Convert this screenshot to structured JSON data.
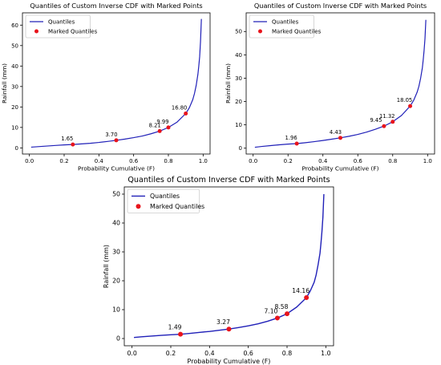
{
  "chart_data": [
    {
      "type": "line",
      "title": "Quantiles of Custom Inverse CDF with Marked Points",
      "xlabel": "Probability Cumulative (F)",
      "ylabel": "Rainfall (mm)",
      "xlim": [
        -0.04,
        1.04
      ],
      "ylim": [
        -3,
        66
      ],
      "xticks": [
        0.0,
        0.2,
        0.4,
        0.6,
        0.8,
        1.0
      ],
      "xtick_labels": [
        "0.0",
        "0.2",
        "0.4",
        "0.6",
        "0.8",
        "1.0"
      ],
      "yticks": [
        0,
        10,
        20,
        30,
        40,
        50,
        60
      ],
      "ytick_labels": [
        "0",
        "10",
        "20",
        "30",
        "40",
        "50",
        "60"
      ],
      "legend_position": "top-left",
      "series": [
        {
          "name": "Quantiles",
          "kind": "line",
          "color": "#2020b8",
          "x": [
            0.01,
            0.05,
            0.1,
            0.15,
            0.2,
            0.25,
            0.3,
            0.35,
            0.4,
            0.45,
            0.5,
            0.55,
            0.6,
            0.65,
            0.7,
            0.75,
            0.8,
            0.85,
            0.9,
            0.92,
            0.94,
            0.95,
            0.96,
            0.97,
            0.975,
            0.98,
            0.985,
            0.99
          ],
          "y": [
            0.35,
            0.6,
            0.9,
            1.2,
            1.45,
            1.65,
            1.95,
            2.25,
            2.65,
            3.15,
            3.7,
            4.3,
            5.0,
            5.8,
            6.9,
            8.21,
            9.99,
            12.6,
            16.8,
            19.5,
            23.5,
            26.5,
            30.5,
            36.0,
            40.0,
            44.5,
            52.0,
            63.0
          ]
        },
        {
          "name": "Marked Quantiles",
          "kind": "scatter",
          "color": "#e8141c",
          "x": [
            0.25,
            0.5,
            0.75,
            0.8,
            0.9
          ],
          "y": [
            1.65,
            3.7,
            8.21,
            9.99,
            16.8
          ],
          "labels": [
            "1.65",
            "3.70",
            "8.21",
            "9.99",
            "16.80"
          ]
        }
      ]
    },
    {
      "type": "line",
      "title": "Quantiles of Custom Inverse CDF with Marked Points",
      "xlabel": "Probability Cumulative (F)",
      "ylabel": "Rainfall (mm)",
      "xlim": [
        -0.04,
        1.04
      ],
      "ylim": [
        -2.5,
        58
      ],
      "xticks": [
        0.0,
        0.2,
        0.4,
        0.6,
        0.8,
        1.0
      ],
      "xtick_labels": [
        "0.0",
        "0.2",
        "0.4",
        "0.6",
        "0.8",
        "1.0"
      ],
      "yticks": [
        0,
        10,
        20,
        30,
        40,
        50
      ],
      "ytick_labels": [
        "0",
        "10",
        "20",
        "30",
        "40",
        "50"
      ],
      "legend_position": "top-left",
      "series": [
        {
          "name": "Quantiles",
          "kind": "line",
          "color": "#2020b8",
          "x": [
            0.01,
            0.05,
            0.1,
            0.15,
            0.2,
            0.25,
            0.3,
            0.35,
            0.4,
            0.45,
            0.5,
            0.55,
            0.6,
            0.65,
            0.7,
            0.75,
            0.8,
            0.85,
            0.9,
            0.92,
            0.94,
            0.95,
            0.96,
            0.97,
            0.975,
            0.98,
            0.985,
            0.99
          ],
          "y": [
            0.4,
            0.75,
            1.1,
            1.45,
            1.75,
            1.96,
            2.35,
            2.8,
            3.3,
            3.85,
            4.43,
            5.1,
            5.9,
            6.9,
            8.1,
            9.45,
            11.32,
            14.0,
            18.05,
            20.5,
            24.0,
            26.5,
            30.0,
            34.5,
            38.0,
            42.0,
            47.0,
            55.0
          ]
        },
        {
          "name": "Marked Quantiles",
          "kind": "scatter",
          "color": "#e8141c",
          "x": [
            0.25,
            0.5,
            0.75,
            0.8,
            0.9
          ],
          "y": [
            1.96,
            4.43,
            9.45,
            11.32,
            18.05
          ],
          "labels": [
            "1.96",
            "4.43",
            "9.45",
            "11.32",
            "18.05"
          ]
        }
      ]
    },
    {
      "type": "line",
      "title": "Quantiles of Custom Inverse CDF with Marked Points",
      "xlabel": "Probability Cumulative (F)",
      "ylabel": "Rainfall (mm)",
      "xlim": [
        -0.04,
        1.04
      ],
      "ylim": [
        -2.5,
        52.5
      ],
      "xticks": [
        0.0,
        0.2,
        0.4,
        0.6,
        0.8,
        1.0
      ],
      "xtick_labels": [
        "0.0",
        "0.2",
        "0.4",
        "0.6",
        "0.8",
        "1.0"
      ],
      "yticks": [
        0,
        10,
        20,
        30,
        40,
        50
      ],
      "ytick_labels": [
        "0",
        "10",
        "20",
        "30",
        "40",
        "50"
      ],
      "legend_position": "top-left",
      "series": [
        {
          "name": "Quantiles",
          "kind": "line",
          "color": "#2020b8",
          "x": [
            0.01,
            0.05,
            0.1,
            0.15,
            0.2,
            0.25,
            0.3,
            0.35,
            0.4,
            0.45,
            0.5,
            0.55,
            0.6,
            0.65,
            0.7,
            0.75,
            0.8,
            0.85,
            0.9,
            0.92,
            0.94,
            0.95,
            0.96,
            0.97,
            0.975,
            0.98,
            0.985,
            0.99
          ],
          "y": [
            0.35,
            0.6,
            0.85,
            1.1,
            1.3,
            1.49,
            1.8,
            2.15,
            2.45,
            2.85,
            3.27,
            3.8,
            4.4,
            5.1,
            6.0,
            7.1,
            8.58,
            10.9,
            14.16,
            16.5,
            19.5,
            22.0,
            25.5,
            29.5,
            33.0,
            37.0,
            42.0,
            50.0
          ]
        },
        {
          "name": "Marked Quantiles",
          "kind": "scatter",
          "color": "#e8141c",
          "x": [
            0.25,
            0.5,
            0.75,
            0.8,
            0.9
          ],
          "y": [
            1.49,
            3.27,
            7.1,
            8.58,
            14.16
          ],
          "labels": [
            "1.49",
            "3.27",
            "7.10",
            "8.58",
            "14.16"
          ]
        }
      ]
    }
  ]
}
